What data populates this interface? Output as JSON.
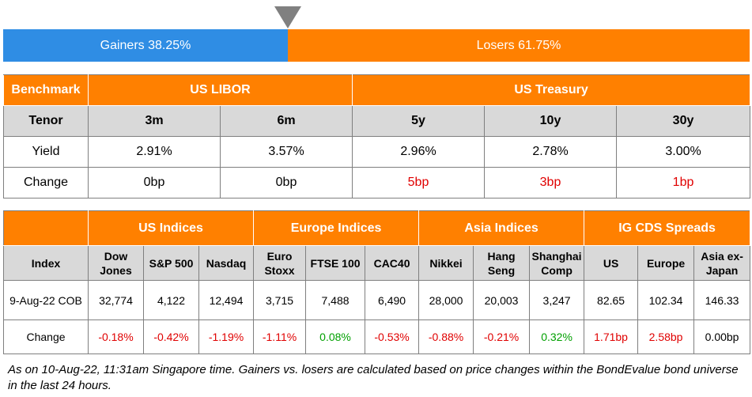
{
  "gainers_losers": {
    "gainers_label": "Gainers 38.25%",
    "losers_label": "Losers 61.75%",
    "gainers_pct": 38.25,
    "losers_pct": 61.75,
    "gainers_color": "#2f8de4",
    "losers_color": "#ff8000"
  },
  "rates": {
    "benchmark": "Benchmark",
    "libor": "US LIBOR",
    "treasury": "US Treasury",
    "tenor_label": "Tenor",
    "tenors": [
      "3m",
      "6m",
      "5y",
      "10y",
      "30y"
    ],
    "yield_label": "Yield",
    "yields": [
      "2.91%",
      "3.57%",
      "2.96%",
      "2.78%",
      "3.00%"
    ],
    "change_label": "Change",
    "changes": [
      "0bp",
      "0bp",
      "5bp",
      "3bp",
      "1bp"
    ]
  },
  "indices": {
    "groups": [
      "US Indices",
      "Europe Indices",
      "Asia Indices",
      "IG CDS Spreads"
    ],
    "index_label": "Index",
    "names": [
      [
        "Dow",
        "Jones"
      ],
      [
        "S&P 500",
        ""
      ],
      [
        "Nasdaq",
        ""
      ],
      [
        "Euro",
        "Stoxx"
      ],
      [
        "FTSE 100",
        ""
      ],
      [
        "CAC40",
        ""
      ],
      [
        "Nikkei",
        ""
      ],
      [
        "Hang",
        "Seng"
      ],
      [
        "Shanghai",
        "Comp"
      ],
      [
        "US",
        ""
      ],
      [
        "Europe",
        ""
      ],
      [
        "Asia ex-",
        "Japan"
      ]
    ],
    "date_label": "9-Aug-22 COB",
    "values": [
      "32,774",
      "4,122",
      "12,494",
      "3,715",
      "7,488",
      "6,490",
      "28,000",
      "20,003",
      "3,247",
      "82.65",
      "102.34",
      "146.33"
    ],
    "change_label": "Change",
    "changes": [
      "-0.18%",
      "-0.42%",
      "-1.19%",
      "-1.11%",
      "0.08%",
      "-0.53%",
      "-0.88%",
      "-0.21%",
      "0.32%",
      "1.71bp",
      "2.58bp",
      "0.00bp"
    ]
  },
  "footnote": "As on 10-Aug-22, 11:31am Singapore time. Gainers vs. losers are calculated based on price changes within the BondEvalue bond universe in the last 24 hours."
}
